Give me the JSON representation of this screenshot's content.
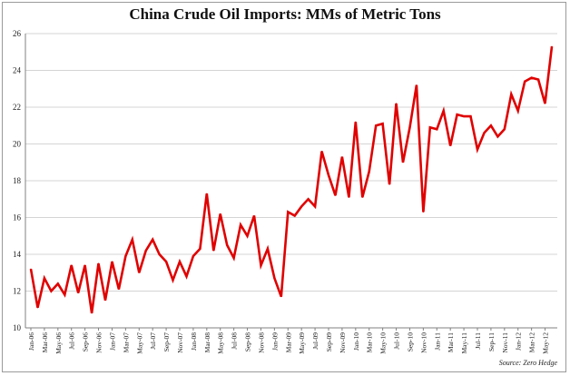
{
  "title": "China Crude Oil Imports: MMs of Metric Tons",
  "source": "Source: Zero Hedge",
  "colors": {
    "line": "#e00000",
    "grid": "#d4d4d4",
    "axis": "#808080"
  },
  "chart_data": {
    "type": "line",
    "title": "China Crude Oil Imports: MMs of Metric Tons",
    "xlabel": "",
    "ylabel": "",
    "ylim": [
      10,
      26
    ],
    "yticks": [
      10,
      12,
      14,
      16,
      18,
      20,
      22,
      24,
      26
    ],
    "grid": true,
    "legend": "none",
    "x_tick_labels": [
      "Jan-06",
      "Mar-06",
      "May-06",
      "Jul-06",
      "Sep-06",
      "Nov-06",
      "Jan-07",
      "Mar-07",
      "May-07",
      "Jul-07",
      "Sep-07",
      "Nov-07",
      "Jan-08",
      "Mar-08",
      "May-08",
      "Jul-08",
      "Sep-08",
      "Nov-08",
      "Jan-09",
      "Mar-09",
      "May-09",
      "Jul-09",
      "Sep-09",
      "Nov-09",
      "Jan-10",
      "Mar-10",
      "May-10",
      "Jul-10",
      "Sep-10",
      "Nov-10",
      "Jan-11",
      "Mar-11",
      "May-11",
      "Jul-11",
      "Sep-11",
      "Nov-11",
      "Jan-12",
      "Mar-12",
      "May-12"
    ],
    "series": [
      {
        "values": [
          13.2,
          11.1,
          12.7,
          12.0,
          12.4,
          11.8,
          13.4,
          11.9,
          13.4,
          10.8,
          13.5,
          11.5,
          13.6,
          12.1,
          13.9,
          14.8,
          13.0,
          14.2,
          14.8,
          14.0,
          13.6,
          12.6,
          13.6,
          12.8,
          13.9,
          14.3,
          17.3,
          14.2,
          16.2,
          14.5,
          13.8,
          15.6,
          15.0,
          16.1,
          13.4,
          14.3,
          12.7,
          11.7,
          16.3,
          16.1,
          16.6,
          17.0,
          16.6,
          19.6,
          18.3,
          17.2,
          19.3,
          17.1,
          21.2,
          17.1,
          18.5,
          21.0,
          21.1,
          17.8,
          22.2,
          19.0,
          20.9,
          23.2,
          16.3,
          20.9,
          20.8,
          21.8,
          19.9,
          21.6,
          21.5,
          21.5,
          19.7,
          20.6,
          21.0,
          20.4,
          20.8,
          22.7,
          21.8,
          23.4,
          23.6,
          23.5,
          22.2,
          25.3
        ]
      }
    ]
  }
}
